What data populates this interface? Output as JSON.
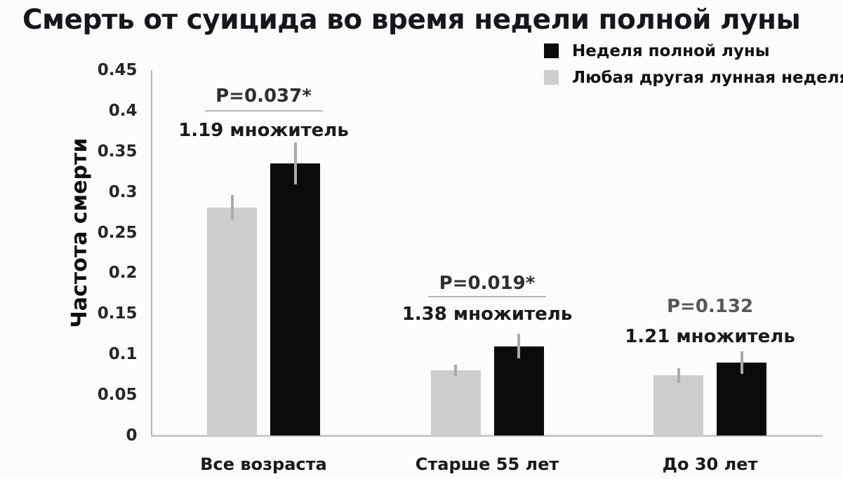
{
  "title": "Смерть от суицида во время недели полной луны",
  "chart_data": {
    "type": "bar",
    "title": "Смерть от суицида во время недели полной луны",
    "ylabel": "Частота смерти",
    "xlabel": "",
    "ylim": [
      0,
      0.45
    ],
    "ytick_labels": [
      "0.45",
      "0.4",
      "0.35",
      "0.3",
      "0.25",
      "0.2",
      "0.15",
      "0.1",
      "0.05",
      "0"
    ],
    "grid": false,
    "legend_position": "top-right",
    "categories": [
      "Все возраста",
      "Старше 55 лет",
      "До 30 лет"
    ],
    "series": [
      {
        "name": "Любая другая лунная неделя",
        "color": "#cecece",
        "values": [
          0.281,
          0.08,
          0.074
        ],
        "errors": [
          0.015,
          0.007,
          0.009
        ]
      },
      {
        "name": "Неделя полной луны",
        "color": "#0b0b0b",
        "values": [
          0.335,
          0.11,
          0.09
        ],
        "errors": [
          0.026,
          0.015,
          0.014
        ]
      }
    ],
    "legend": [
      {
        "label": "Неделя полной луны",
        "color": "#0b0b0b"
      },
      {
        "label": "Любая другая лунная неделя",
        "color": "#cecece"
      }
    ],
    "annotations": [
      {
        "p_label": "P=0.037*",
        "multiplier_label": "1.19 множитель",
        "underlined": true,
        "p_color": "#2e2e2e"
      },
      {
        "p_label": "P=0.019*",
        "multiplier_label": "1.38 множитель",
        "underlined": true,
        "p_color": "#2e2e2e"
      },
      {
        "p_label": "P=0.132",
        "multiplier_label": "1.21 множитель",
        "underlined": false,
        "p_color": "#575757"
      }
    ]
  }
}
